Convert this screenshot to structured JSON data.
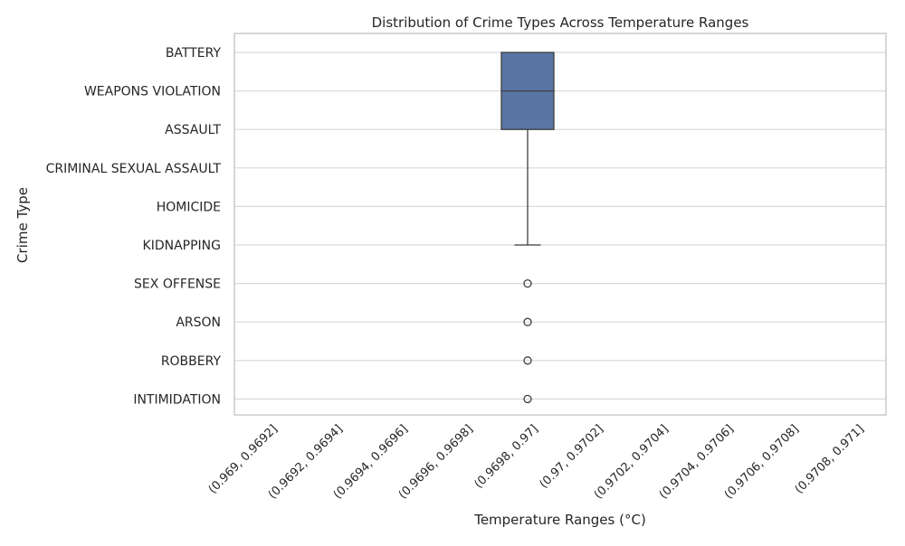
{
  "chart_data": {
    "type": "box",
    "title": "Distribution of Crime Types Across Temperature Ranges",
    "xlabel": "Temperature Ranges (°C)",
    "ylabel": "Crime Type",
    "categories": [
      "(0.969, 0.9692]",
      "(0.9692, 0.9694]",
      "(0.9694, 0.9696]",
      "(0.9696, 0.9698]",
      "(0.9698, 0.97]",
      "(0.97, 0.9702]",
      "(0.9702, 0.9704]",
      "(0.9704, 0.9706]",
      "(0.9706, 0.9708]",
      "(0.9708, 0.971]"
    ],
    "y_categories": [
      "BATTERY",
      "WEAPONS VIOLATION",
      "ASSAULT",
      "CRIMINAL SEXUAL ASSAULT",
      "HOMICIDE",
      "KIDNAPPING",
      "SEX OFFENSE",
      "ARSON",
      "ROBBERY",
      "INTIMIDATION"
    ],
    "boxes": [
      {
        "category": "(0.9698, 0.97]",
        "q1": "ASSAULT",
        "median": "WEAPONS VIOLATION",
        "q3": "BATTERY",
        "whisker_low": "KIDNAPPING",
        "whisker_high": "BATTERY",
        "outliers": [
          "SEX OFFENSE",
          "ARSON",
          "ROBBERY",
          "INTIMIDATION"
        ]
      }
    ],
    "grid": "horizontal",
    "colors": {
      "box": "#5875a4",
      "line": "#3f3f3f",
      "grid": "#d9d9d9",
      "axis": "#cccccc"
    }
  }
}
